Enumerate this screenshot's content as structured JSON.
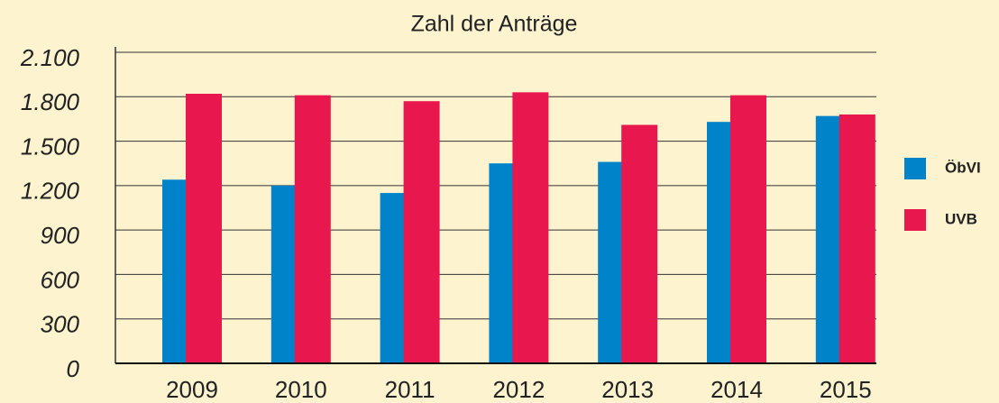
{
  "chart_data": {
    "type": "bar",
    "title": "Zahl der Anträge",
    "categories": [
      "2009",
      "2010",
      "2011",
      "2012",
      "2013",
      "2014",
      "2015"
    ],
    "series": [
      {
        "name": "ÖbVI",
        "color": "#0083c9",
        "values": [
          1240,
          1200,
          1150,
          1350,
          1360,
          1630,
          1670
        ]
      },
      {
        "name": "UVB",
        "color": "#e8184f",
        "values": [
          1820,
          1810,
          1770,
          1830,
          1610,
          1810,
          1680
        ]
      }
    ],
    "ylim": [
      0,
      2100
    ],
    "yticks": [
      0,
      300,
      600,
      900,
      {
        "value": 1200,
        "label": "1.200"
      },
      {
        "value": 1500,
        "label": "1.500"
      },
      {
        "value": 1800,
        "label": "1.800"
      },
      {
        "value": 2100,
        "label": "2.100"
      }
    ],
    "grid": true,
    "legend": "right"
  }
}
